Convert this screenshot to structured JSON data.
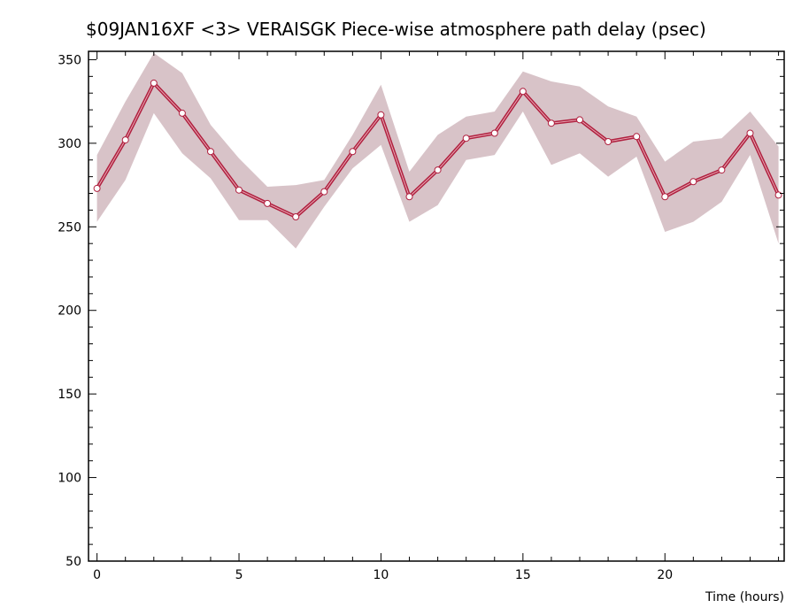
{
  "chart_data": {
    "type": "line",
    "title": "$09JAN16XF <3>  VERAISGK  Piece-wise atmosphere path delay (psec)",
    "xlabel": "Time (hours)",
    "ylabel": "",
    "xlim": [
      -0.3,
      24.2
    ],
    "ylim": [
      50,
      355
    ],
    "x_ticks": [
      0,
      5,
      10,
      15,
      20
    ],
    "y_ticks": [
      50,
      100,
      150,
      200,
      250,
      300,
      350
    ],
    "grid": false,
    "colors": {
      "line": "#b0203f",
      "band": "#d8c3c8",
      "marker_fill": "#ffffff"
    },
    "series": [
      {
        "x": [
          0,
          1,
          2,
          3,
          4,
          5,
          6,
          7,
          8,
          9,
          10,
          11,
          12,
          13,
          14,
          15,
          16,
          17,
          18,
          19,
          20,
          21,
          22,
          23,
          24
        ],
        "values": [
          273,
          302,
          336,
          318,
          295,
          272,
          264,
          256,
          271,
          295,
          317,
          268,
          284,
          303,
          306,
          331,
          312,
          314,
          301,
          304,
          268,
          277,
          284,
          306,
          269
        ],
        "upper": [
          293,
          325,
          354,
          342,
          311,
          291,
          274,
          275,
          278,
          305,
          335,
          283,
          305,
          316,
          319,
          343,
          337,
          334,
          322,
          316,
          289,
          301,
          303,
          319,
          298
        ],
        "lower": [
          253,
          278,
          318,
          294,
          279,
          254,
          254,
          237,
          262,
          285,
          299,
          253,
          263,
          290,
          293,
          319,
          287,
          294,
          280,
          292,
          247,
          253,
          265,
          293,
          240
        ]
      }
    ]
  }
}
